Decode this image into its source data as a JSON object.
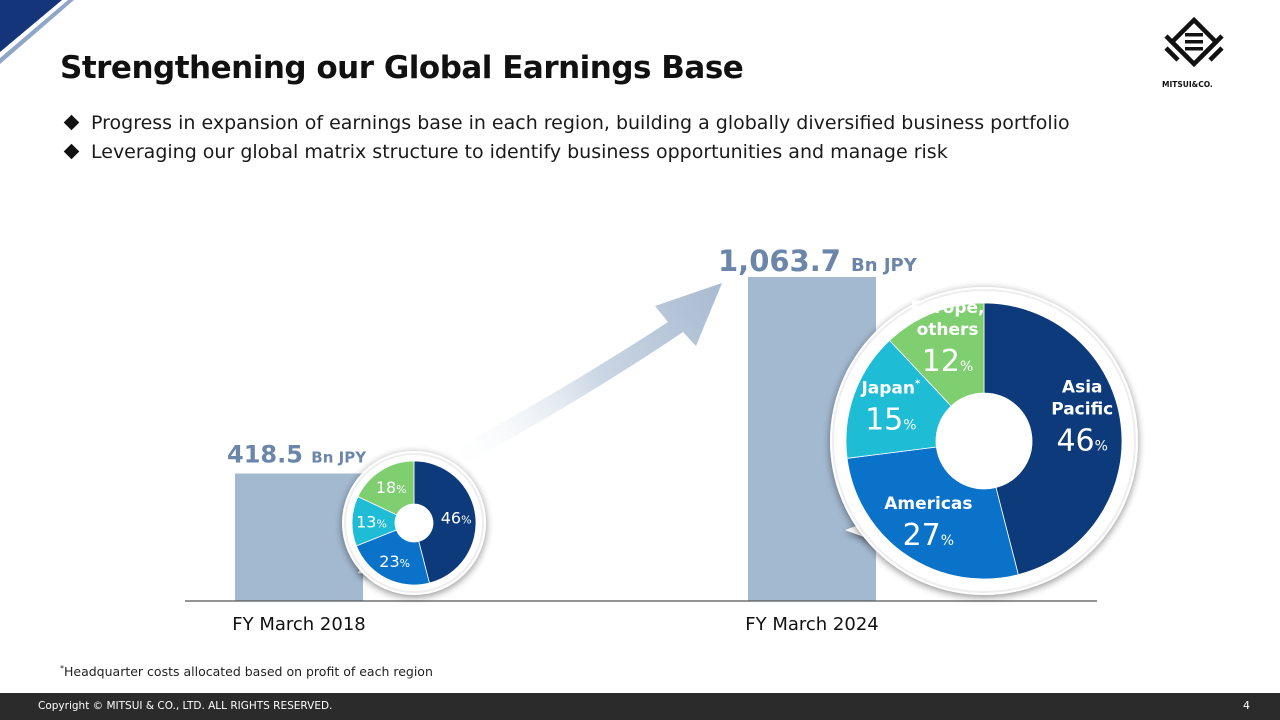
{
  "slide": {
    "title": "Strengthening our Global Earnings Base",
    "bullets": [
      "Progress in expansion of earnings base in each region, building a globally diversified business portfolio",
      "Leveraging our global matrix structure to identify business opportunities and manage risk"
    ],
    "footnote_mark": "*",
    "footnote": "Headquarter costs allocated based on profit of each region",
    "copyright": "Copyright © MITSUI & CO., LTD. ALL RIGHTS RESERVED.",
    "page_number": "4",
    "logo_text": "MITSUI&CO."
  },
  "colors": {
    "bar": "#a3b9d0",
    "value_text": "#6b86a8",
    "asia_pacific": "#0d3a7a",
    "americas": "#0b72c9",
    "japan": "#1fbcd6",
    "europe_others": "#7fcf70",
    "footer": "#2b2b2b",
    "corner": "#14357a"
  },
  "chart_data": {
    "type": "bar",
    "categories": [
      "FY March 2018",
      "FY March 2024"
    ],
    "values": [
      418.5,
      1063.7
    ],
    "value_labels": [
      "418.5",
      "1,063.7"
    ],
    "unit": "Bn JPY",
    "ylim": [
      0,
      1063.7
    ],
    "grid": false,
    "breakdowns": [
      {
        "category": "FY March 2018",
        "type": "pie",
        "slices": [
          {
            "label": "",
            "value": 46,
            "color_key": "asia_pacific"
          },
          {
            "label": "",
            "value": 23,
            "color_key": "americas"
          },
          {
            "label": "",
            "value": 13,
            "color_key": "japan"
          },
          {
            "label": "",
            "value": 18,
            "color_key": "europe_others"
          }
        ]
      },
      {
        "category": "FY March 2024",
        "type": "pie",
        "slices": [
          {
            "label": "Asia Pacific",
            "value": 46,
            "color_key": "asia_pacific"
          },
          {
            "label": "Americas",
            "value": 27,
            "color_key": "americas"
          },
          {
            "label": "Japan*",
            "value": 15,
            "color_key": "japan"
          },
          {
            "label": "Europe, others",
            "value": 12,
            "color_key": "europe_others"
          }
        ]
      }
    ]
  }
}
